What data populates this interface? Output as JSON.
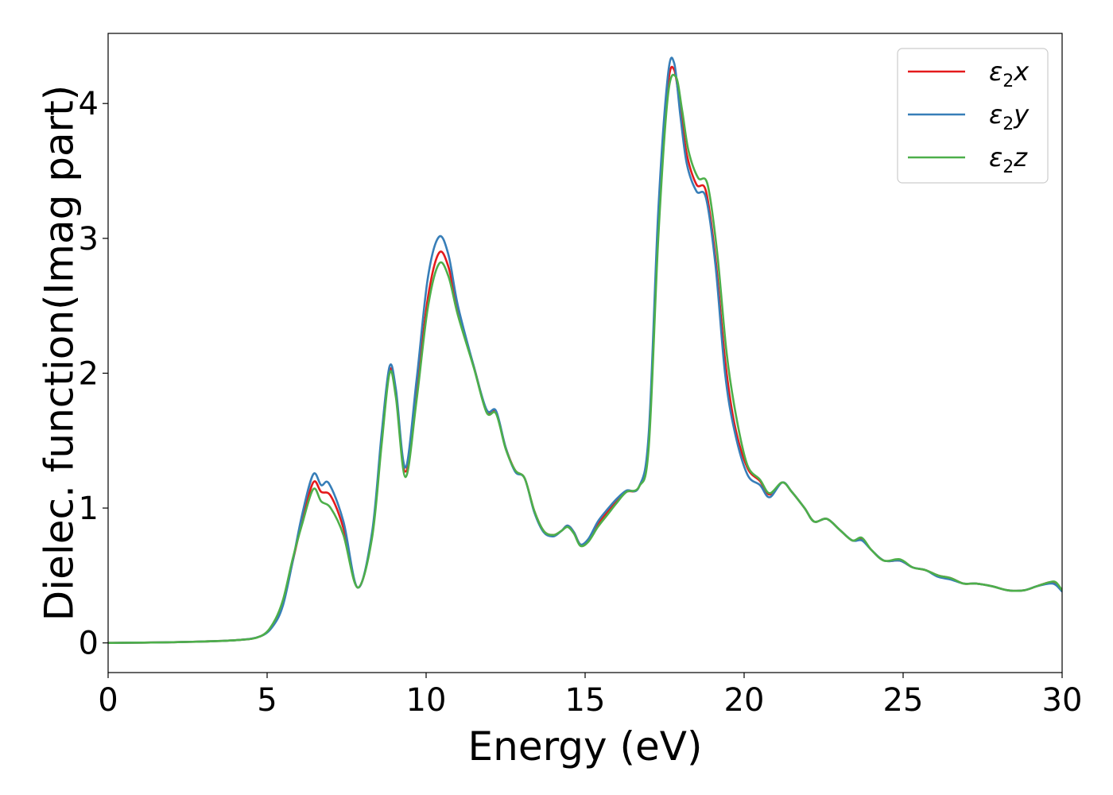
{
  "chart_data": {
    "type": "line",
    "title": "",
    "xlabel": "Energy (eV)",
    "ylabel": "Dielec. function(Imag part)",
    "xlim": [
      0,
      30
    ],
    "ylim": [
      -0.22,
      4.52
    ],
    "xticks": [
      0,
      5,
      10,
      15,
      20,
      25,
      30
    ],
    "yticks": [
      0,
      1,
      2,
      3,
      4
    ],
    "grid": false,
    "legend_position": "top-right",
    "series": [
      {
        "name": "ε₂x",
        "legend_base": "ε",
        "legend_sub": "2",
        "legend_suffix": "x",
        "color": "#e41a1c",
        "x": [
          0,
          2,
          4,
          4.8,
          5.2,
          5.5,
          5.8,
          6.1,
          6.45,
          6.7,
          7.0,
          7.4,
          7.85,
          8.3,
          8.6,
          8.85,
          9.05,
          9.35,
          9.7,
          10.05,
          10.4,
          10.7,
          11.0,
          11.5,
          11.9,
          12.2,
          12.5,
          12.8,
          13.1,
          13.4,
          13.7,
          14.0,
          14.25,
          14.45,
          14.65,
          14.85,
          15.1,
          15.4,
          15.7,
          16.0,
          16.3,
          16.7,
          17.0,
          17.3,
          17.6,
          17.8,
          18.0,
          18.2,
          18.5,
          18.8,
          19.1,
          19.4,
          19.7,
          20.1,
          20.5,
          20.8,
          21.2,
          21.5,
          21.9,
          22.2,
          22.6,
          23.0,
          23.4,
          23.7,
          24.0,
          24.4,
          24.9,
          25.3,
          25.7,
          26.1,
          26.5,
          26.9,
          27.3,
          27.8,
          28.3,
          28.8,
          29.2,
          29.6,
          29.8,
          30.0
        ],
        "y": [
          0.0,
          0.005,
          0.02,
          0.05,
          0.14,
          0.3,
          0.6,
          0.9,
          1.19,
          1.12,
          1.09,
          0.85,
          0.41,
          0.8,
          1.5,
          2.02,
          1.85,
          1.27,
          1.85,
          2.55,
          2.89,
          2.79,
          2.46,
          2.05,
          1.72,
          1.71,
          1.45,
          1.28,
          1.22,
          0.98,
          0.83,
          0.8,
          0.83,
          0.87,
          0.82,
          0.73,
          0.76,
          0.88,
          0.97,
          1.05,
          1.12,
          1.16,
          1.5,
          3.1,
          4.12,
          4.25,
          3.95,
          3.62,
          3.4,
          3.35,
          2.85,
          2.1,
          1.62,
          1.3,
          1.2,
          1.1,
          1.19,
          1.12,
          1.0,
          0.9,
          0.92,
          0.84,
          0.76,
          0.77,
          0.69,
          0.61,
          0.61,
          0.56,
          0.54,
          0.5,
          0.48,
          0.44,
          0.44,
          0.42,
          0.39,
          0.39,
          0.42,
          0.45,
          0.44,
          0.39
        ]
      },
      {
        "name": "ε₂y",
        "legend_base": "ε",
        "legend_sub": "2",
        "legend_suffix": "y",
        "color": "#377eb8",
        "x": [
          0,
          2,
          4,
          4.8,
          5.2,
          5.5,
          5.8,
          6.1,
          6.45,
          6.7,
          6.95,
          7.4,
          7.85,
          8.3,
          8.6,
          8.85,
          9.05,
          9.35,
          9.7,
          10.05,
          10.4,
          10.7,
          11.0,
          11.5,
          11.9,
          12.2,
          12.5,
          12.8,
          13.1,
          13.4,
          13.7,
          14.0,
          14.25,
          14.45,
          14.65,
          14.85,
          15.1,
          15.4,
          15.7,
          16.0,
          16.3,
          16.7,
          17.0,
          17.3,
          17.6,
          17.8,
          18.0,
          18.2,
          18.5,
          18.8,
          19.1,
          19.4,
          19.7,
          20.1,
          20.5,
          20.8,
          21.2,
          21.5,
          21.9,
          22.2,
          22.6,
          23.0,
          23.4,
          23.7,
          24.0,
          24.4,
          24.9,
          25.3,
          25.7,
          26.1,
          26.5,
          26.9,
          27.3,
          27.8,
          28.3,
          28.8,
          29.2,
          29.6,
          29.8,
          30.0
        ],
        "y": [
          0.0,
          0.005,
          0.02,
          0.05,
          0.13,
          0.28,
          0.6,
          0.95,
          1.25,
          1.17,
          1.18,
          0.9,
          0.41,
          0.82,
          1.55,
          2.05,
          1.88,
          1.3,
          1.95,
          2.7,
          3.01,
          2.88,
          2.5,
          2.05,
          1.73,
          1.72,
          1.45,
          1.27,
          1.22,
          0.97,
          0.82,
          0.79,
          0.83,
          0.87,
          0.82,
          0.73,
          0.77,
          0.9,
          0.99,
          1.07,
          1.13,
          1.16,
          1.55,
          3.2,
          4.2,
          4.3,
          3.9,
          3.55,
          3.35,
          3.3,
          2.8,
          2.0,
          1.57,
          1.25,
          1.17,
          1.08,
          1.19,
          1.12,
          1.0,
          0.9,
          0.92,
          0.84,
          0.76,
          0.76,
          0.69,
          0.61,
          0.61,
          0.56,
          0.54,
          0.49,
          0.47,
          0.44,
          0.44,
          0.42,
          0.39,
          0.39,
          0.42,
          0.44,
          0.43,
          0.38
        ]
      },
      {
        "name": "ε₂z",
        "legend_base": "ε",
        "legend_sub": "2",
        "legend_suffix": "z",
        "color": "#4daf4a",
        "x": [
          0,
          2,
          4,
          4.8,
          5.2,
          5.5,
          5.8,
          6.1,
          6.45,
          6.7,
          7.0,
          7.4,
          7.85,
          8.3,
          8.6,
          8.85,
          9.05,
          9.35,
          9.7,
          10.05,
          10.4,
          10.7,
          11.0,
          11.5,
          11.9,
          12.2,
          12.5,
          12.8,
          13.1,
          13.4,
          13.7,
          14.0,
          14.25,
          14.45,
          14.65,
          14.85,
          15.1,
          15.4,
          15.7,
          16.0,
          16.3,
          16.7,
          17.0,
          17.3,
          17.6,
          17.85,
          18.05,
          18.25,
          18.55,
          18.85,
          19.15,
          19.45,
          19.75,
          20.1,
          20.5,
          20.8,
          21.2,
          21.5,
          21.9,
          22.2,
          22.6,
          23.0,
          23.4,
          23.7,
          24.0,
          24.4,
          24.9,
          25.3,
          25.7,
          26.1,
          26.5,
          26.9,
          27.3,
          27.8,
          28.3,
          28.8,
          29.2,
          29.6,
          29.8,
          30.0
        ],
        "y": [
          0.0,
          0.005,
          0.02,
          0.05,
          0.15,
          0.32,
          0.62,
          0.88,
          1.14,
          1.05,
          1.0,
          0.8,
          0.41,
          0.78,
          1.47,
          2.0,
          1.82,
          1.23,
          1.8,
          2.48,
          2.81,
          2.72,
          2.43,
          2.04,
          1.71,
          1.7,
          1.44,
          1.28,
          1.22,
          0.98,
          0.83,
          0.8,
          0.83,
          0.86,
          0.81,
          0.72,
          0.75,
          0.86,
          0.95,
          1.04,
          1.12,
          1.16,
          1.45,
          3.0,
          4.05,
          4.2,
          3.95,
          3.65,
          3.45,
          3.4,
          2.9,
          2.15,
          1.68,
          1.32,
          1.21,
          1.11,
          1.19,
          1.12,
          1.0,
          0.9,
          0.92,
          0.84,
          0.76,
          0.78,
          0.69,
          0.61,
          0.62,
          0.56,
          0.54,
          0.5,
          0.48,
          0.44,
          0.44,
          0.42,
          0.39,
          0.39,
          0.42,
          0.45,
          0.45,
          0.39
        ]
      }
    ]
  }
}
